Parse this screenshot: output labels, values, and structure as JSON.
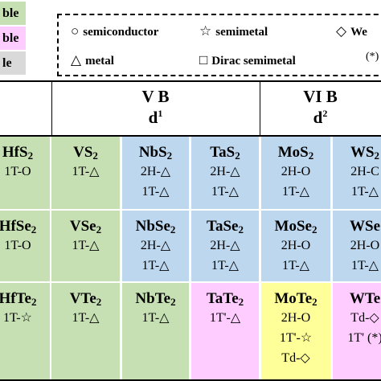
{
  "legend": {
    "swatches": [
      {
        "label": "ble",
        "color": "#c6e0b4"
      },
      {
        "label": "ble",
        "color": "#ffccff"
      },
      {
        "label": "le",
        "color": "#d9d9d9"
      }
    ],
    "symbols": {
      "semiconductor": {
        "symbol": "○",
        "label": "semiconductor"
      },
      "semimetal": {
        "symbol": "☆",
        "label": "semimetal"
      },
      "weyl": {
        "symbol": "◇",
        "label": "We"
      },
      "metal": {
        "symbol": "△",
        "label": "metal"
      },
      "dirac": {
        "symbol": "□",
        "label": "Dirac semimetal"
      },
      "note": "(*)"
    }
  },
  "groups": {
    "vb": {
      "name": "V B",
      "d": "d",
      "d_sup": "1"
    },
    "vib": {
      "name": "VI B",
      "d": "d",
      "d_sup": "2"
    }
  },
  "rows": [
    {
      "cells": [
        {
          "base": "HfS",
          "sub": "2",
          "phases": [
            "1T-O"
          ],
          "color": "#c6e0b4"
        },
        {
          "base": "VS",
          "sub": "2",
          "phases": [
            "1T-△"
          ],
          "color": "#c6e0b4"
        },
        {
          "base": "NbS",
          "sub": "2",
          "phases": [
            "2H-△",
            "1T-△"
          ],
          "color": "#bdd7ee"
        },
        {
          "base": "TaS",
          "sub": "2",
          "phases": [
            "2H-△",
            "1T-△"
          ],
          "color": "#bdd7ee"
        },
        {
          "base": "MoS",
          "sub": "2",
          "phases": [
            "2H-O",
            "1T-△"
          ],
          "color": "#bdd7ee"
        },
        {
          "base": "WS",
          "sub": "2",
          "phases": [
            "2H-C",
            "1T-△"
          ],
          "color": "#bdd7ee"
        }
      ]
    },
    {
      "cells": [
        {
          "base": "HfSe",
          "sub": "2",
          "phases": [
            "1T-O"
          ],
          "color": "#c6e0b4"
        },
        {
          "base": "VSe",
          "sub": "2",
          "phases": [
            "1T-△"
          ],
          "color": "#c6e0b4"
        },
        {
          "base": "NbSe",
          "sub": "2",
          "phases": [
            "2H-△",
            "1T-△"
          ],
          "color": "#bdd7ee"
        },
        {
          "base": "TaSe",
          "sub": "2",
          "phases": [
            "2H-△",
            "1T-△"
          ],
          "color": "#bdd7ee"
        },
        {
          "base": "MoSe",
          "sub": "2",
          "phases": [
            "2H-O",
            "1T-△"
          ],
          "color": "#bdd7ee"
        },
        {
          "base": "WSe",
          "sub": "",
          "phases": [
            "2H-O",
            "1T-△"
          ],
          "color": "#bdd7ee"
        }
      ]
    },
    {
      "cells": [
        {
          "base": "HfTe",
          "sub": "2",
          "phases": [
            "1T-☆"
          ],
          "color": "#c6e0b4"
        },
        {
          "base": "VTe",
          "sub": "2",
          "phases": [
            "1T-△"
          ],
          "color": "#c6e0b4"
        },
        {
          "base": "NbTe",
          "sub": "2",
          "phases": [
            "1T-△"
          ],
          "color": "#c6e0b4"
        },
        {
          "base": "TaTe",
          "sub": "2",
          "phases": [
            "1T'-△"
          ],
          "color": "#ffccff"
        },
        {
          "base": "MoTe",
          "sub": "2",
          "phases": [
            "2H-O",
            "1T'-☆",
            "Td-◇"
          ],
          "color": "#ffff99"
        },
        {
          "base": "WTe",
          "sub": "",
          "phases": [
            "Td-◇",
            "1T' (*)"
          ],
          "color": "#ffccff"
        }
      ]
    }
  ]
}
